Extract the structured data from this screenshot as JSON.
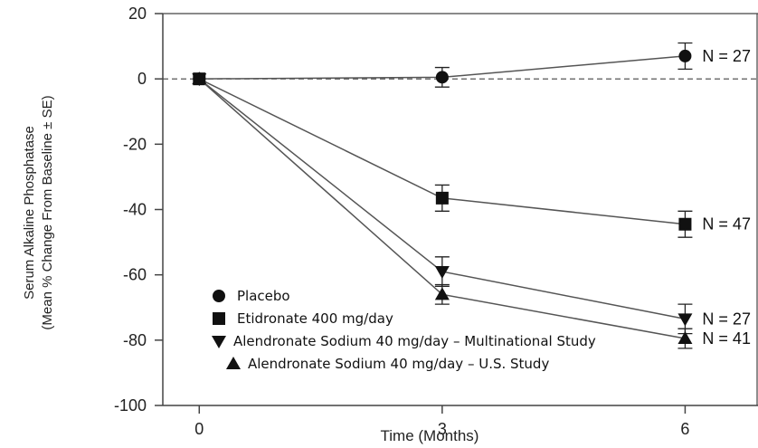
{
  "chart_data": {
    "type": "line",
    "xlabel": "Time (Months)",
    "ylabel_line1": "Serum Alkaline Phosphatase",
    "ylabel_line2": "(Mean % Change From Baseline ± SE)",
    "x": [
      0,
      3,
      6
    ],
    "x_ticks": [
      "0",
      "3",
      "6"
    ],
    "y_ticks": [
      "20",
      "0",
      "-20",
      "-40",
      "-60",
      "-80",
      "-100"
    ],
    "xlim": [
      -0.45,
      6.9
    ],
    "ylim": [
      -100,
      20
    ],
    "reference_line_y": 0,
    "series": [
      {
        "name": "Placebo",
        "marker": "circle",
        "values": [
          0,
          0.5,
          7
        ],
        "se": [
          0,
          3,
          4
        ],
        "n_label": "N = 27"
      },
      {
        "name": "Etidronate 400 mg/day",
        "marker": "square",
        "values": [
          0,
          -36.5,
          -44.5
        ],
        "se": [
          0,
          4,
          4
        ],
        "n_label": "N = 47"
      },
      {
        "name": "Alendronate Sodium 40 mg/day – Multinational Study",
        "marker": "triangle-down",
        "values": [
          0,
          -59,
          -73.5
        ],
        "se": [
          0,
          4.5,
          4.5
        ],
        "n_label": "N = 27"
      },
      {
        "name": "Alendronate Sodium 40 mg/day – U.S. Study",
        "marker": "triangle-up",
        "values": [
          0,
          -66,
          -79.5
        ],
        "se": [
          0,
          3,
          3
        ],
        "n_label": "N = 41"
      }
    ]
  }
}
